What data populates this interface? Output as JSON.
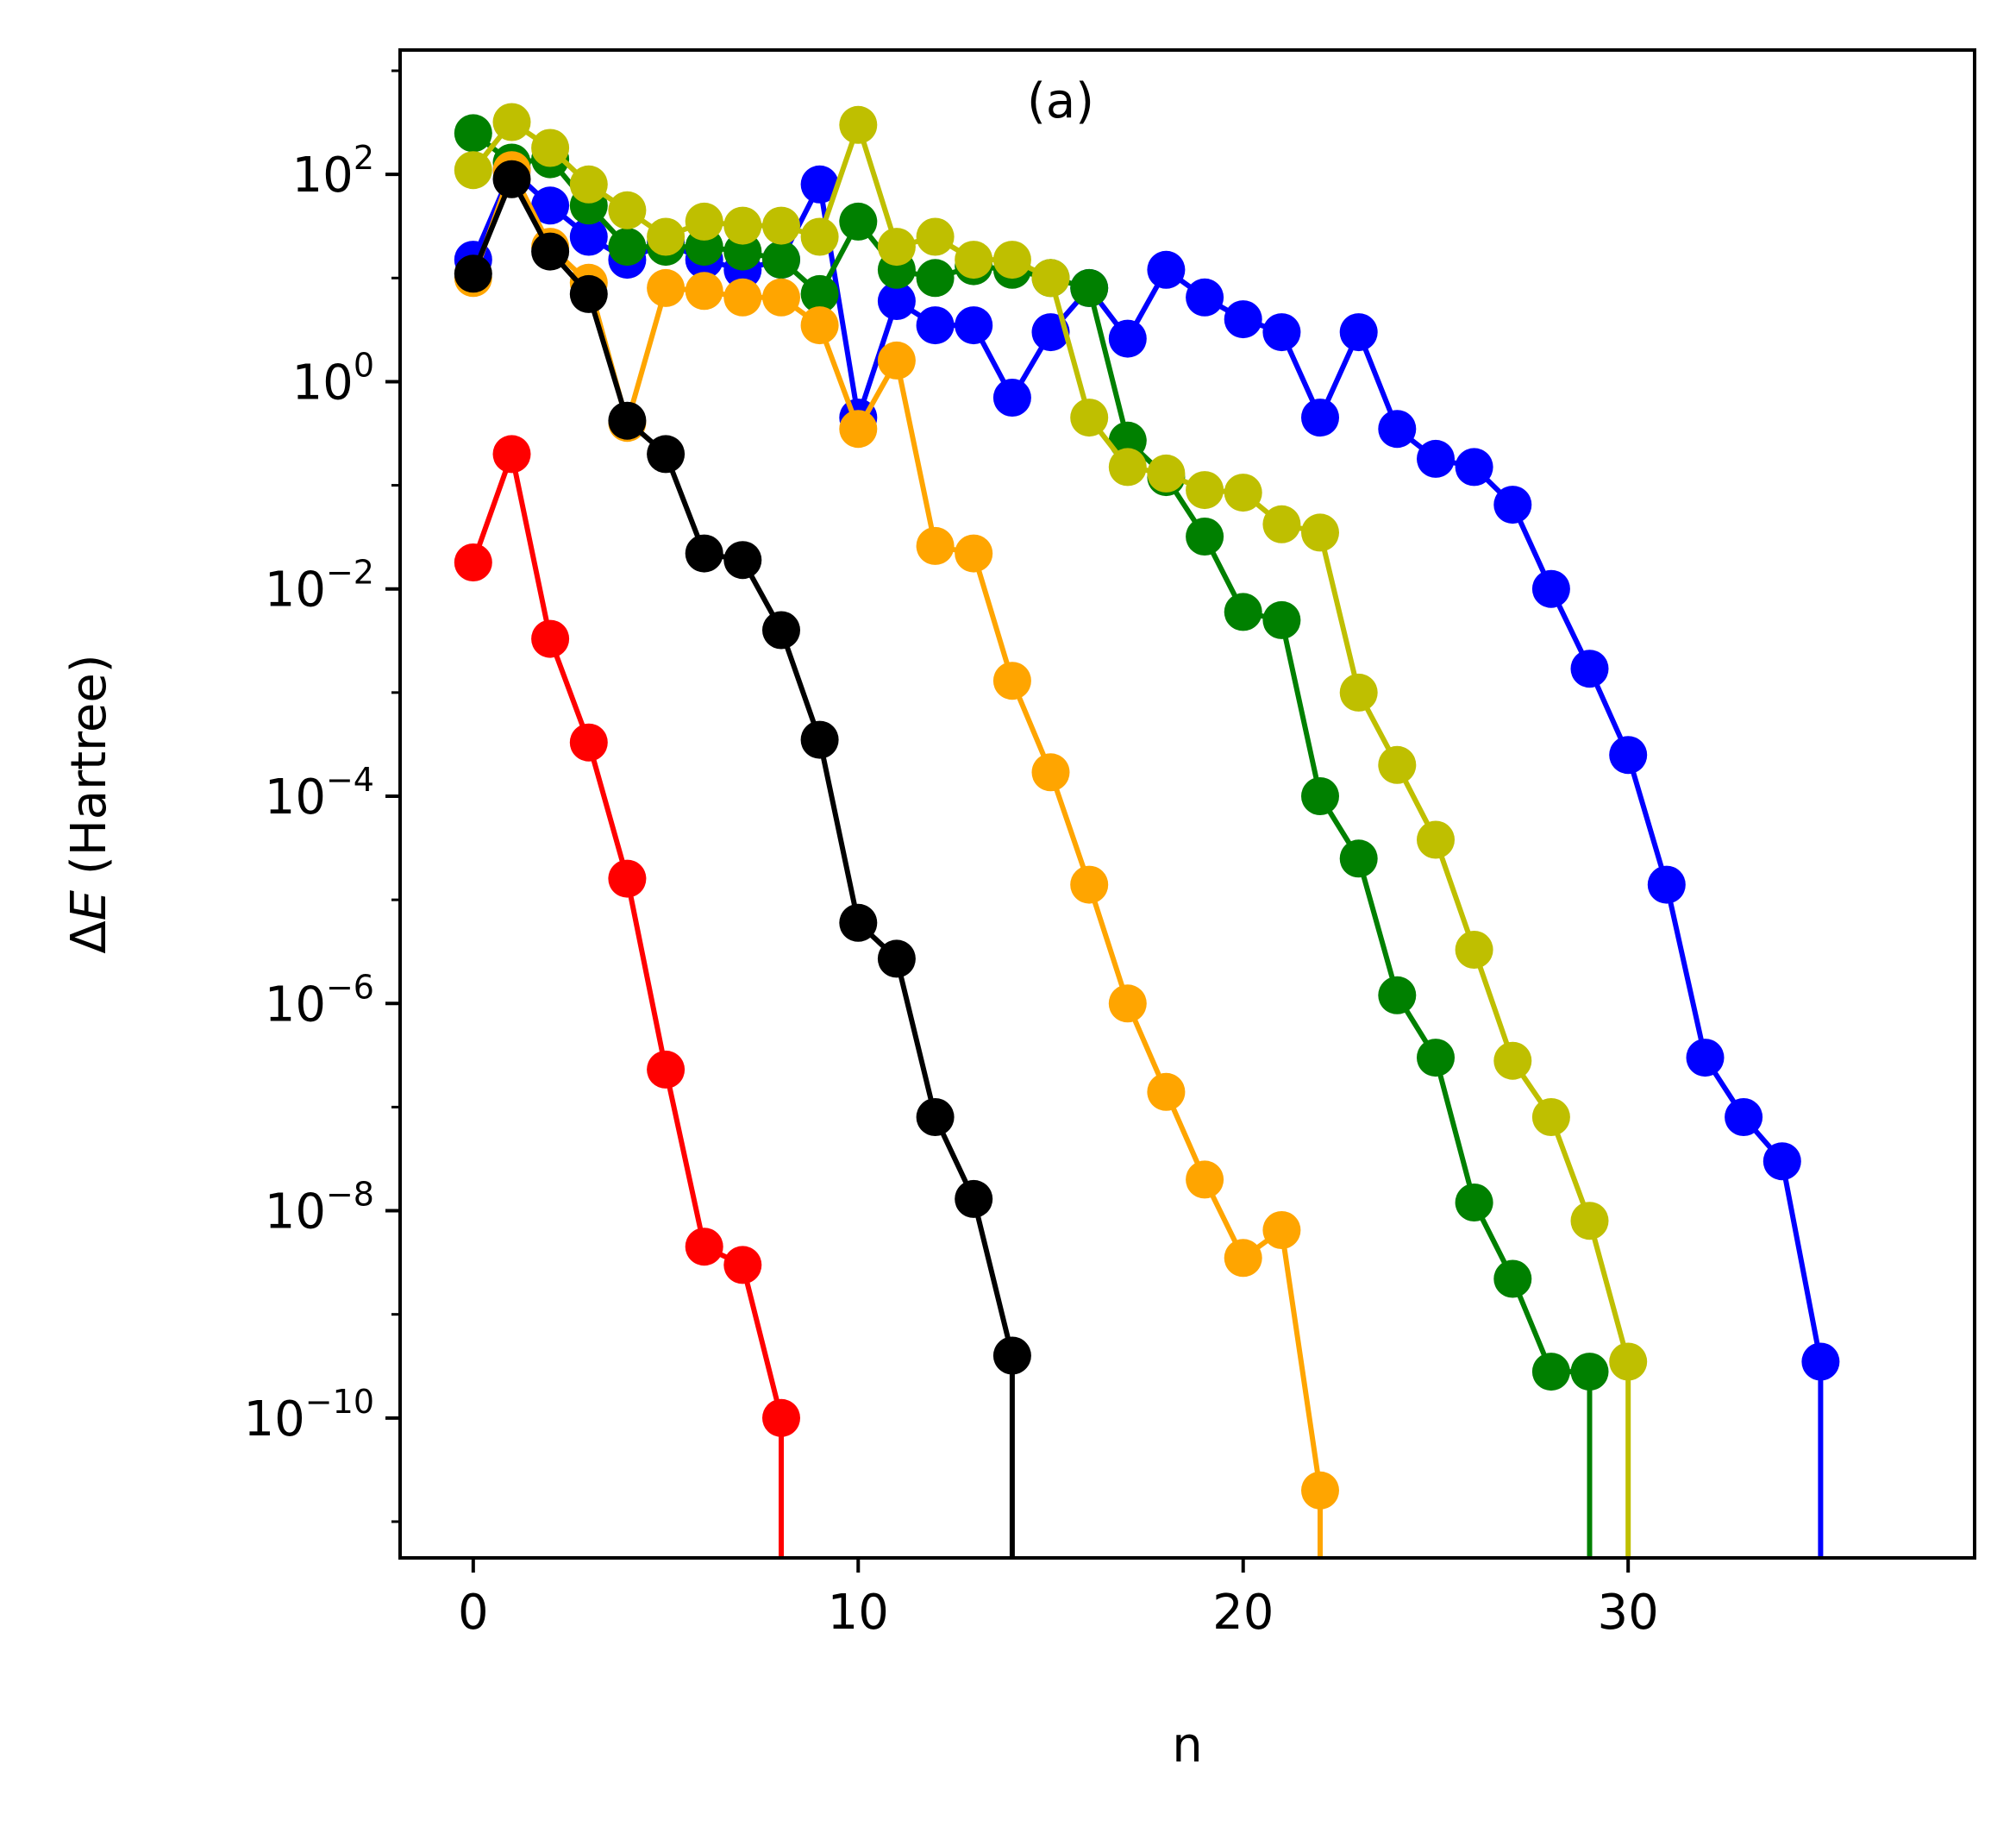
{
  "chart_data": {
    "type": "line",
    "annotation": "(a)",
    "xlabel": "n",
    "ylabel_prefix": "Δ",
    "ylabel_var": "E",
    "ylabel_suffix": " (Hartree)",
    "xlim": [
      -1.9,
      39
    ],
    "ylim_log10": [
      -11.35,
      3.2
    ],
    "y_scale": "log",
    "grid": false,
    "x_ticks": [
      0,
      10,
      20,
      30
    ],
    "y_ticks": [
      {
        "base": "10",
        "exp": "2",
        "value": 2
      },
      {
        "base": "10",
        "exp": "0",
        "value": 0
      },
      {
        "base": "10",
        "exp": "−2",
        "value": -2
      },
      {
        "base": "10",
        "exp": "−4",
        "value": -4
      },
      {
        "base": "10",
        "exp": "−6",
        "value": -6
      },
      {
        "base": "10",
        "exp": "−8",
        "value": -8
      },
      {
        "base": "10",
        "exp": "−10",
        "value": -10
      }
    ],
    "series": [
      {
        "color": "#0000ff",
        "drop_to_bottom": true,
        "x": [
          0,
          1,
          2,
          3,
          4,
          5,
          6,
          7,
          8,
          9,
          10,
          11,
          12,
          13,
          14,
          15,
          16,
          17,
          18,
          19,
          20,
          21,
          22,
          23,
          24,
          25,
          26,
          27,
          28,
          29,
          30,
          31,
          32,
          33,
          34,
          35
        ],
        "y": [
          15,
          110,
          50,
          25,
          15,
          22,
          15,
          12,
          15,
          80,
          0.45,
          6,
          3.5,
          3.5,
          0.7,
          3,
          8,
          2.6,
          12,
          6.5,
          4,
          3,
          0.45,
          3,
          0.35,
          0.18,
          0.15,
          0.065,
          0.01,
          0.0017,
          0.00025,
          1.4e-05,
          3e-07,
          8e-08,
          3e-08,
          3.5e-10
        ]
      },
      {
        "color": "#008000",
        "drop_to_bottom": true,
        "x": [
          0,
          1,
          2,
          3,
          4,
          5,
          6,
          7,
          8,
          9,
          10,
          11,
          12,
          13,
          14,
          15,
          16,
          17,
          18,
          19,
          20,
          21,
          22,
          23,
          24,
          25,
          26,
          27,
          28,
          29
        ],
        "y": [
          250,
          130,
          140,
          50,
          20,
          20,
          20,
          18,
          15,
          7,
          35,
          12,
          10,
          13,
          12,
          10,
          8,
          0.27,
          0.12,
          0.032,
          0.006,
          0.005,
          0.0001,
          2.5e-05,
          1.2e-06,
          3e-07,
          1.2e-08,
          2.2e-09,
          2.8e-10,
          2.8e-10
        ]
      },
      {
        "color": "#ffa500",
        "drop_to_bottom": true,
        "x": [
          0,
          1,
          2,
          3,
          4,
          5,
          6,
          7,
          8,
          9,
          10,
          11,
          12,
          13,
          14,
          15,
          16,
          17,
          18,
          19,
          20,
          21,
          22
        ],
        "y": [
          10,
          110,
          20,
          9,
          0.4,
          8,
          7.5,
          6.5,
          6.5,
          3.5,
          0.35,
          1.6,
          0.026,
          0.022,
          0.0013,
          0.00017,
          1.4e-05,
          1e-06,
          1.4e-07,
          2e-08,
          3.5e-09,
          6.5e-09,
          2e-11
        ]
      },
      {
        "color": "#bfbf00",
        "drop_to_bottom": true,
        "x": [
          0,
          1,
          2,
          3,
          4,
          5,
          6,
          7,
          8,
          9,
          10,
          11,
          12,
          13,
          14,
          15,
          16,
          17,
          18,
          19,
          20,
          21,
          22,
          23,
          24,
          25,
          26,
          27,
          28,
          29,
          30
        ],
        "y": [
          110,
          320,
          180,
          80,
          45,
          25,
          35,
          32,
          32,
          25,
          300,
          20,
          25,
          15,
          15,
          10,
          0.45,
          0.15,
          0.13,
          0.09,
          0.085,
          0.042,
          0.035,
          0.001,
          0.0002,
          3.8e-05,
          3.3e-06,
          2.8e-07,
          8e-08,
          8e-09,
          3.5e-10
        ]
      },
      {
        "color": "#ff0000",
        "drop_to_bottom": true,
        "x": [
          0,
          1,
          2,
          3,
          4,
          5,
          6,
          7,
          8
        ],
        "y": [
          0.018,
          0.2,
          0.0033,
          0.00033,
          1.6e-05,
          2.3e-07,
          4.5e-09,
          3e-09,
          1e-10
        ]
      },
      {
        "color": "#000000",
        "drop_to_bottom": true,
        "x": [
          0,
          1,
          2,
          3,
          4,
          5,
          6,
          7,
          8,
          9,
          10,
          11,
          12,
          13,
          14
        ],
        "y": [
          11,
          90,
          18,
          7,
          0.42,
          0.2,
          0.022,
          0.019,
          0.004,
          0.00035,
          6e-06,
          2.7e-06,
          8e-08,
          1.3e-08,
          4e-10
        ]
      }
    ]
  }
}
